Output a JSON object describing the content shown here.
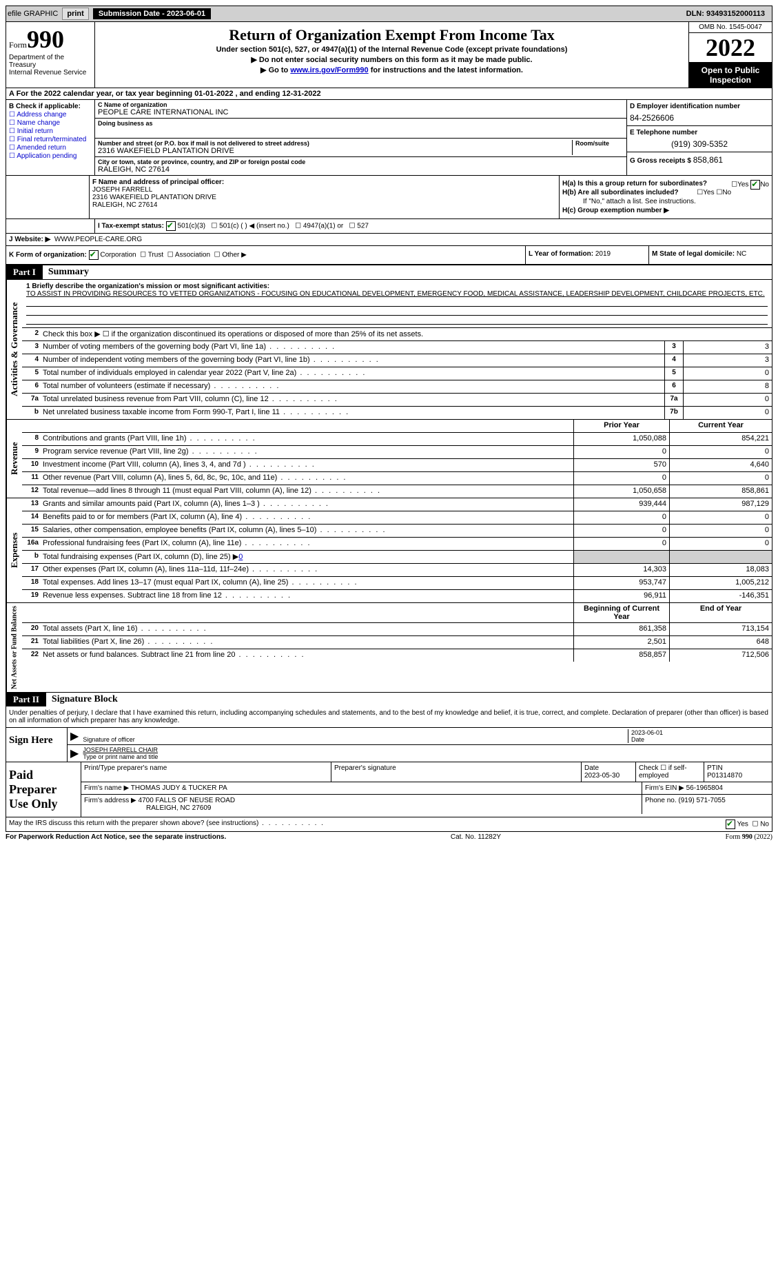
{
  "topbar": {
    "efile": "efile GRAPHIC",
    "print": "print",
    "submission": "Submission Date - 2023-06-01",
    "dln": "DLN: 93493152000113"
  },
  "header": {
    "form_label": "Form",
    "form_num": "990",
    "dept": "Department of the Treasury",
    "irs": "Internal Revenue Service",
    "title": "Return of Organization Exempt From Income Tax",
    "subtitle": "Under section 501(c), 527, or 4947(a)(1) of the Internal Revenue Code (except private foundations)",
    "instr1": "▶ Do not enter social security numbers on this form as it may be made public.",
    "instr2_pre": "▶ Go to ",
    "instr2_link": "www.irs.gov/Form990",
    "instr2_post": " for instructions and the latest information.",
    "omb": "OMB No. 1545-0047",
    "year": "2022",
    "open": "Open to Public Inspection"
  },
  "row_a": "A For the 2022 calendar year, or tax year beginning 01-01-2022    , and ending 12-31-2022",
  "col_b": {
    "title": "B Check if applicable:",
    "items": [
      "Address change",
      "Name change",
      "Initial return",
      "Final return/terminated",
      "Amended return",
      "Application pending"
    ]
  },
  "col_c": {
    "name_lbl": "C Name of organization",
    "name": "PEOPLE CARE INTERNATIONAL INC",
    "dba_lbl": "Doing business as",
    "addr_lbl": "Number and street (or P.O. box if mail is not delivered to street address)",
    "room_lbl": "Room/suite",
    "addr": "2316 WAKEFIELD PLANTATION DRIVE",
    "city_lbl": "City or town, state or province, country, and ZIP or foreign postal code",
    "city": "RALEIGH, NC  27614"
  },
  "col_d": {
    "ein_lbl": "D Employer identification number",
    "ein": "84-2526606",
    "phone_lbl": "E Telephone number",
    "phone": "(919) 309-5352",
    "gross_lbl": "G Gross receipts $",
    "gross": "858,861"
  },
  "section_f": {
    "lbl": "F Name and address of principal officer:",
    "name": "JOSEPH FARRELL",
    "addr1": "2316 WAKEFIELD PLANTATION DRIVE",
    "addr2": "RALEIGH, NC  27614"
  },
  "section_h": {
    "ha": "H(a)  Is this a group return for subordinates?",
    "hb": "H(b)  Are all subordinates included?",
    "hb_note": "If \"No,\" attach a list. See instructions.",
    "hc": "H(c)  Group exemption number ▶",
    "yes": "Yes",
    "no": "No"
  },
  "row_i": {
    "lbl": "I   Tax-exempt status:",
    "opts": [
      "501(c)(3)",
      "501(c) (  ) ◀ (insert no.)",
      "4947(a)(1) or",
      "527"
    ]
  },
  "row_j": {
    "lbl": "J   Website: ▶",
    "val": "WWW.PEOPLE-CARE.ORG"
  },
  "row_k": {
    "lbl": "K Form of organization:",
    "opts": [
      "Corporation",
      "Trust",
      "Association",
      "Other ▶"
    ]
  },
  "row_l": {
    "lbl": "L Year of formation:",
    "val": "2019"
  },
  "row_m": {
    "lbl": "M State of legal domicile:",
    "val": "NC"
  },
  "part1": {
    "label": "Part I",
    "title": "Summary",
    "mission_lbl": "1   Briefly describe the organization's mission or most significant activities:",
    "mission": "TO ASSIST IN PROVIDING RESOURCES TO VETTED ORGANIZATIONS - FOCUSING ON EDUCATIONAL DEVELOPMENT, EMERGENCY FOOD, MEDICAL ASSISTANCE, LEADERSHIP DEVELOPMENT, CHILDCARE PROJECTS, ETC.",
    "line2": "Check this box ▶ ☐ if the organization discontinued its operations or disposed of more than 25% of its net assets."
  },
  "governance": {
    "label": "Activities & Governance",
    "lines": [
      {
        "n": "3",
        "d": "Number of voting members of the governing body (Part VI, line 1a)",
        "b": "3",
        "v": "3"
      },
      {
        "n": "4",
        "d": "Number of independent voting members of the governing body (Part VI, line 1b)",
        "b": "4",
        "v": "3"
      },
      {
        "n": "5",
        "d": "Total number of individuals employed in calendar year 2022 (Part V, line 2a)",
        "b": "5",
        "v": "0"
      },
      {
        "n": "6",
        "d": "Total number of volunteers (estimate if necessary)",
        "b": "6",
        "v": "8"
      },
      {
        "n": "7a",
        "d": "Total unrelated business revenue from Part VIII, column (C), line 12",
        "b": "7a",
        "v": "0"
      },
      {
        "n": "b",
        "d": "Net unrelated business taxable income from Form 990-T, Part I, line 11",
        "b": "7b",
        "v": "0"
      }
    ]
  },
  "revenue": {
    "label": "Revenue",
    "header": {
      "prior": "Prior Year",
      "current": "Current Year"
    },
    "lines": [
      {
        "n": "8",
        "d": "Contributions and grants (Part VIII, line 1h)",
        "p": "1,050,088",
        "c": "854,221"
      },
      {
        "n": "9",
        "d": "Program service revenue (Part VIII, line 2g)",
        "p": "0",
        "c": "0"
      },
      {
        "n": "10",
        "d": "Investment income (Part VIII, column (A), lines 3, 4, and 7d )",
        "p": "570",
        "c": "4,640"
      },
      {
        "n": "11",
        "d": "Other revenue (Part VIII, column (A), lines 5, 6d, 8c, 9c, 10c, and 11e)",
        "p": "0",
        "c": "0"
      },
      {
        "n": "12",
        "d": "Total revenue—add lines 8 through 11 (must equal Part VIII, column (A), line 12)",
        "p": "1,050,658",
        "c": "858,861"
      }
    ]
  },
  "expenses": {
    "label": "Expenses",
    "lines": [
      {
        "n": "13",
        "d": "Grants and similar amounts paid (Part IX, column (A), lines 1–3 )",
        "p": "939,444",
        "c": "987,129"
      },
      {
        "n": "14",
        "d": "Benefits paid to or for members (Part IX, column (A), line 4)",
        "p": "0",
        "c": "0"
      },
      {
        "n": "15",
        "d": "Salaries, other compensation, employee benefits (Part IX, column (A), lines 5–10)",
        "p": "0",
        "c": "0"
      },
      {
        "n": "16a",
        "d": "Professional fundraising fees (Part IX, column (A), line 11e)",
        "p": "0",
        "c": "0"
      },
      {
        "n": "b",
        "d": "Total fundraising expenses (Part IX, column (D), line 25) ▶",
        "p": "shaded",
        "c": "shaded",
        "fund": "0"
      },
      {
        "n": "17",
        "d": "Other expenses (Part IX, column (A), lines 11a–11d, 11f–24e)",
        "p": "14,303",
        "c": "18,083"
      },
      {
        "n": "18",
        "d": "Total expenses. Add lines 13–17 (must equal Part IX, column (A), line 25)",
        "p": "953,747",
        "c": "1,005,212"
      },
      {
        "n": "19",
        "d": "Revenue less expenses. Subtract line 18 from line 12",
        "p": "96,911",
        "c": "-146,351"
      }
    ]
  },
  "netassets": {
    "label": "Net Assets or Fund Balances",
    "header": {
      "prior": "Beginning of Current Year",
      "current": "End of Year"
    },
    "lines": [
      {
        "n": "20",
        "d": "Total assets (Part X, line 16)",
        "p": "861,358",
        "c": "713,154"
      },
      {
        "n": "21",
        "d": "Total liabilities (Part X, line 26)",
        "p": "2,501",
        "c": "648"
      },
      {
        "n": "22",
        "d": "Net assets or fund balances. Subtract line 21 from line 20",
        "p": "858,857",
        "c": "712,506"
      }
    ]
  },
  "part2": {
    "label": "Part II",
    "title": "Signature Block",
    "intro": "Under penalties of perjury, I declare that I have examined this return, including accompanying schedules and statements, and to the best of my knowledge and belief, it is true, correct, and complete. Declaration of preparer (other than officer) is based on all information of which preparer has any knowledge."
  },
  "sign": {
    "label": "Sign Here",
    "sig_lbl": "Signature of officer",
    "date": "2023-06-01",
    "date_lbl": "Date",
    "name": "JOSEPH FARRELL CHAIR",
    "name_lbl": "Type or print name and title"
  },
  "prep": {
    "label": "Paid Preparer Use Only",
    "print_lbl": "Print/Type preparer's name",
    "sig_lbl": "Preparer's signature",
    "date_lbl": "Date",
    "date": "2023-05-30",
    "check_lbl": "Check ☐ if self-employed",
    "ptin_lbl": "PTIN",
    "ptin": "P01314870",
    "firm_lbl": "Firm's name    ▶",
    "firm": "THOMAS JUDY & TUCKER PA",
    "ein_lbl": "Firm's EIN ▶",
    "ein": "56-1965804",
    "addr_lbl": "Firm's address ▶",
    "addr1": "4700 FALLS OF NEUSE ROAD",
    "addr2": "RALEIGH, NC  27609",
    "phone_lbl": "Phone no.",
    "phone": "(919) 571-7055"
  },
  "discuss": {
    "text": "May the IRS discuss this return with the preparer shown above? (see instructions)",
    "yes": "Yes",
    "no": "No"
  },
  "footer": {
    "left": "For Paperwork Reduction Act Notice, see the separate instructions.",
    "cat": "Cat. No. 11282Y",
    "right": "Form 990 (2022)"
  }
}
